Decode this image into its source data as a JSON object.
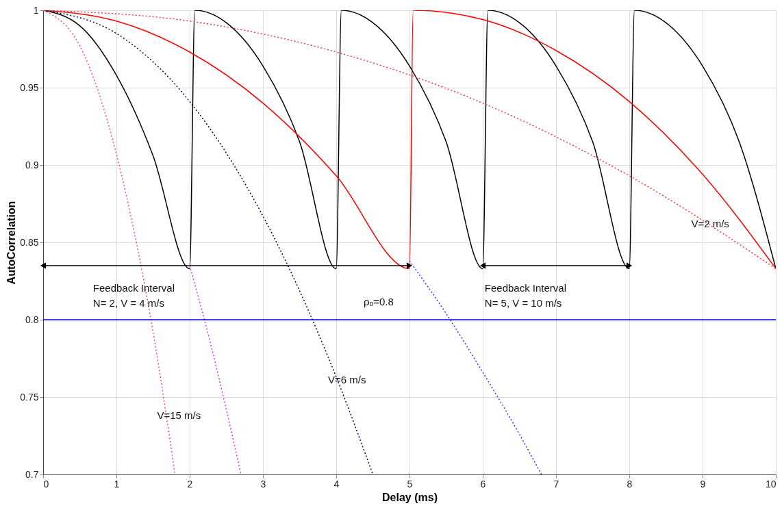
{
  "chart_data": {
    "type": "line",
    "xlabel": "Delay (ms)",
    "ylabel": "AutoCorrelation",
    "xlim": [
      0,
      10
    ],
    "ylim": [
      0.7,
      1
    ],
    "xticks": [
      0,
      1,
      2,
      3,
      4,
      5,
      6,
      7,
      8,
      9,
      10
    ],
    "yticks": [
      0.7,
      0.75,
      0.8,
      0.85,
      0.9,
      0.95,
      1
    ],
    "grid": true,
    "line_style": "solid",
    "series": [
      {
        "color": "#000000",
        "x": [
          0,
          0.5,
          1,
          1.5,
          2,
          2.07,
          2.5,
          3,
          3.5,
          4,
          4.07,
          4.5,
          5,
          5.5,
          6,
          6.07,
          6.5,
          7,
          7.5,
          8,
          8.07,
          8.5,
          9,
          9.5,
          10
        ],
        "values": [
          1,
          0.99,
          0.958,
          0.906,
          0.833,
          1,
          0.992,
          0.964,
          0.915,
          0.833,
          1,
          0.992,
          0.964,
          0.915,
          0.833,
          1,
          0.992,
          0.964,
          0.915,
          0.833,
          1,
          0.992,
          0.964,
          0.915,
          0.833
        ]
      },
      {
        "color": "#ff0000",
        "x": [
          0,
          1,
          2,
          3,
          4,
          5,
          5.05,
          6,
          7,
          8,
          9,
          10
        ],
        "values": [
          1,
          0.993,
          0.973,
          0.94,
          0.893,
          0.833,
          1,
          0.994,
          0.974,
          0.941,
          0.894,
          0.833
        ]
      },
      {
        "color": "#ff3333",
        "line_style": "dotted",
        "x": [
          0,
          2,
          4,
          6,
          8,
          10
        ],
        "values": [
          1,
          0.993,
          0.973,
          0.94,
          0.893,
          0.833
        ]
      },
      {
        "color": "#000055",
        "line_style": "dotted",
        "x": [
          0,
          1,
          2,
          3,
          4,
          4.5
        ],
        "values": [
          1,
          0.985,
          0.941,
          0.867,
          0.763,
          0.7
        ]
      },
      {
        "color": "#3333ff",
        "line_style": "dotted",
        "x": [
          5,
          5.5,
          6,
          6.5,
          6.8
        ],
        "values": [
          0.838,
          0.804,
          0.766,
          0.726,
          0.7
        ]
      },
      {
        "color": "#dd33dd",
        "line_style": "dotted",
        "x": [
          2,
          2.25,
          2.5,
          2.7
        ],
        "values": [
          0.835,
          0.791,
          0.742,
          0.7
        ]
      },
      {
        "color": "#ff4488",
        "line_style": "dotted",
        "x": [
          0,
          0.5,
          1,
          1.25,
          1.5,
          1.8
        ],
        "values": [
          1,
          0.977,
          0.907,
          0.855,
          0.792,
          0.7
        ]
      },
      {
        "color": "#000000",
        "marker": "triangle",
        "x": [
          0,
          5
        ],
        "values": [
          0.835,
          0.835
        ]
      },
      {
        "color": "#000000",
        "marker": "triangle",
        "x": [
          6,
          8
        ],
        "values": [
          0.835,
          0.835
        ]
      }
    ],
    "ref_lines": [
      {
        "axis": "y",
        "value": 0.8,
        "color": "#0000ff"
      }
    ],
    "annotations": [
      "Feedback Interval\nN= 2, V = 4 m/s",
      "Feedback Interval\nN= 5, V = 10 m/s",
      "ρₒ=0.8",
      "V=2 m/s",
      "V=6 m/s",
      "V=15 m/s"
    ]
  }
}
